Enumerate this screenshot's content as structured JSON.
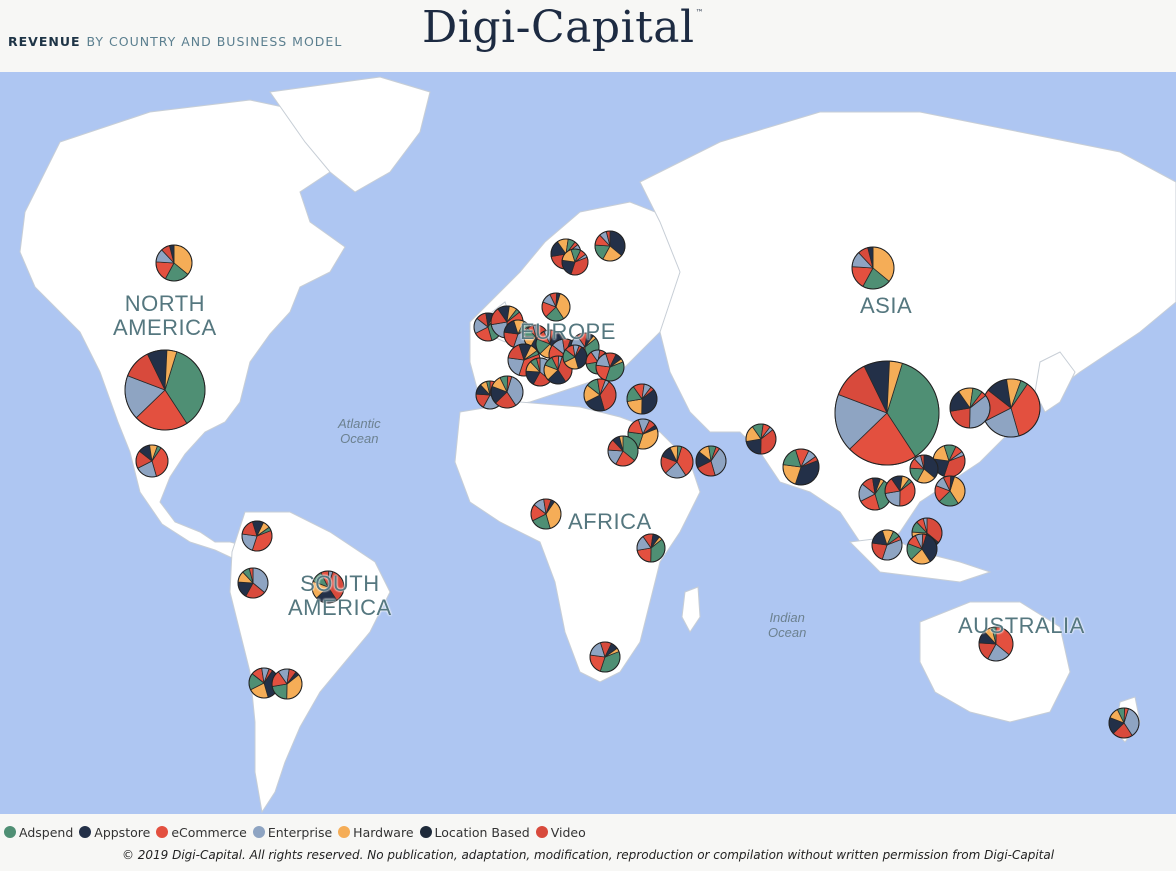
{
  "header": {
    "subtitle_strong": "REVENUE",
    "subtitle_rest": "BY COUNTRY AND BUSINESS MODEL",
    "brand": "Digi-Capital",
    "brand_tm": "™"
  },
  "colors": {
    "ocean": "#aec6f2",
    "land": "#ffffff",
    "Adspend": "#4f8f74",
    "Appstore": "#233048",
    "eCommerce": "#e3503f",
    "Enterprise": "#8ea4c2",
    "Hardware": "#f5ad57",
    "Location Based": "#1e2a3a",
    "Video": "#d84a3c"
  },
  "map": {
    "region_labels": [
      {
        "text": "NORTH\nAMERICA"
      },
      {
        "text": "EUROPE"
      },
      {
        "text": "ASIA"
      },
      {
        "text": "AFRICA"
      },
      {
        "text": "SOUTH\nAMERICA"
      },
      {
        "text": "AUSTRALIA"
      }
    ],
    "ocean_labels": [
      {
        "text": "Atlantic\nOcean"
      },
      {
        "text": "Indian\nOcean"
      }
    ]
  },
  "legend": [
    {
      "label": "Adspend",
      "color": "#4f8f74"
    },
    {
      "label": "Appstore",
      "color": "#233048"
    },
    {
      "label": "eCommerce",
      "color": "#e3503f"
    },
    {
      "label": "Enterprise",
      "color": "#8ea4c2"
    },
    {
      "label": "Hardware",
      "color": "#f5ad57"
    },
    {
      "label": "Location Based",
      "color": "#1e2a3a"
    },
    {
      "label": "Video",
      "color": "#d84a3c"
    }
  ],
  "copyright": "© 2019 Digi-Capital. All rights reserved. No publication, adaptation, modification, reproduction or compilation without written permission from Digi-Capital"
}
